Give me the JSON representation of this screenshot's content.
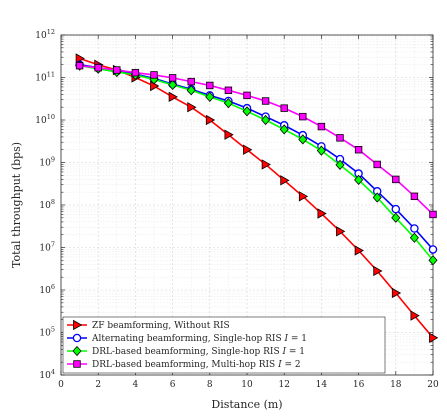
{
  "chart_data": {
    "type": "line",
    "title": "",
    "xlabel": "Distance (m)",
    "ylabel": "Total throughput (bps)",
    "xlim": [
      0,
      20
    ],
    "ylim_log10": [
      4,
      12
    ],
    "y_scale": "log",
    "grid": true,
    "legend_position": "bottom-left",
    "x_ticks": [
      "0",
      "2",
      "4",
      "6",
      "8",
      "10",
      "12",
      "14",
      "16",
      "18",
      "20"
    ],
    "y_ticks": [
      {
        "base": "10",
        "exp": "4"
      },
      {
        "base": "10",
        "exp": "5"
      },
      {
        "base": "10",
        "exp": "6"
      },
      {
        "base": "10",
        "exp": "7"
      },
      {
        "base": "10",
        "exp": "8"
      },
      {
        "base": "10",
        "exp": "9"
      },
      {
        "base": "10",
        "exp": "10"
      },
      {
        "base": "10",
        "exp": "11"
      },
      {
        "base": "10",
        "exp": "12"
      }
    ],
    "x": [
      1,
      2,
      3,
      4,
      5,
      6,
      7,
      8,
      9,
      10,
      11,
      12,
      13,
      14,
      15,
      16,
      17,
      18,
      19,
      20
    ],
    "series": [
      {
        "name": "ZF beamforming, Without RIS",
        "color": "#ff0000",
        "marker": "triangle-right",
        "values": [
          280000000000.0,
          200000000000.0,
          150000000000.0,
          100000000000.0,
          63000000000.0,
          35000000000.0,
          20000000000.0,
          10000000000.0,
          4500000000.0,
          2000000000.0,
          900000000.0,
          380000000.0,
          160000000.0,
          63000000.0,
          24000000.0,
          8500000.0,
          2800000.0,
          850000.0,
          250000.0,
          75000.0
        ]
      },
      {
        "name": "Alternating beamforming, Single-hop RIS I = 1",
        "color": "#0000ff",
        "marker": "circle",
        "values": [
          200000000000.0,
          170000000000.0,
          140000000000.0,
          120000000000.0,
          95000000000.0,
          70000000000.0,
          53000000000.0,
          38000000000.0,
          28000000000.0,
          19000000000.0,
          12000000000.0,
          7500000000.0,
          4400000000.0,
          2400000000.0,
          1200000000.0,
          550000000.0,
          210000000.0,
          80000000.0,
          28000000.0,
          9000000.0
        ]
      },
      {
        "name": "DRL-based beamforming, Single-hop RIS I = 1",
        "color": "#00ff00",
        "marker": "diamond",
        "values": [
          190000000000.0,
          160000000000.0,
          135000000000.0,
          115000000000.0,
          90000000000.0,
          67000000000.0,
          50000000000.0,
          35000000000.0,
          25000000000.0,
          16000000000.0,
          10000000000.0,
          6000000000.0,
          3500000000.0,
          1900000000.0,
          880000000.0,
          390000000.0,
          150000000.0,
          50000000.0,
          17000000.0,
          5000000.0
        ]
      },
      {
        "name": "DRL-based beamforming, Multi-hop RIS I = 2",
        "color": "#ff00ff",
        "marker": "square",
        "values": [
          190000000000.0,
          170000000000.0,
          150000000000.0,
          130000000000.0,
          115000000000.0,
          98000000000.0,
          80000000000.0,
          65000000000.0,
          50000000000.0,
          38000000000.0,
          28000000000.0,
          19000000000.0,
          12000000000.0,
          7000000000.0,
          3800000000.0,
          2000000000.0,
          900000000.0,
          400000000.0,
          160000000.0,
          60000000.0
        ]
      }
    ],
    "legend": [
      {
        "prefix": "ZF beamforming, Without RIS",
        "var": "",
        "suffix": ""
      },
      {
        "prefix": "Alternating beamforming, Single-hop RIS ",
        "var": "I",
        "suffix": " = 1"
      },
      {
        "prefix": "DRL-based beamforming, Single-hop RIS ",
        "var": "I",
        "suffix": " = 1"
      },
      {
        "prefix": "DRL-based beamforming, Multi-hop RIS ",
        "var": "I",
        "suffix": " = 2"
      }
    ]
  }
}
